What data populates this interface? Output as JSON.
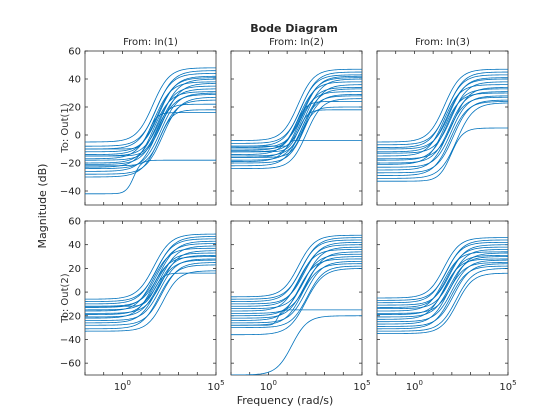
{
  "chart_data": {
    "type": "line",
    "title": "Bode Diagram",
    "xlabel": "Frequency  (rad/s)",
    "ylabel": "Magnitude (dB)",
    "x_scale": "log",
    "xlim": [
      0.01,
      100000
    ],
    "x_tick_labels": [
      {
        "value": 1,
        "base": "10",
        "exp": "0"
      },
      {
        "value": 100000,
        "base": "10",
        "exp": "5"
      }
    ],
    "column_titles": [
      "From: In(1)",
      "From: In(2)",
      "From: In(3)"
    ],
    "row_labels": [
      "To: Out(1)",
      "To: Out(2)"
    ],
    "line_color": "#0072bd",
    "grid": false,
    "rows": [
      {
        "ylim": [
          -50,
          60
        ],
        "yticks": [
          60,
          40,
          20,
          0,
          -20,
          -40
        ]
      },
      {
        "ylim": [
          -70,
          60
        ],
        "yticks": [
          60,
          40,
          20,
          0,
          -20,
          -40,
          -60
        ]
      }
    ],
    "series_note_shape": "each curve: [low-frequency dB, corner rad/s, high-frequency dB]",
    "panels": [
      {
        "row": 0,
        "col": 0,
        "curves": [
          [
            -5,
            2,
            48
          ],
          [
            -8,
            3,
            46
          ],
          [
            -10,
            2.5,
            44
          ],
          [
            -12,
            4,
            42
          ],
          [
            -14,
            3,
            41
          ],
          [
            -15,
            5,
            40
          ],
          [
            -17,
            2,
            38
          ],
          [
            -18,
            6,
            37
          ],
          [
            -20,
            3,
            35
          ],
          [
            -21,
            4,
            33
          ],
          [
            -23,
            2,
            31
          ],
          [
            -24,
            5,
            30
          ],
          [
            -26,
            3,
            29
          ],
          [
            -28,
            6,
            27
          ],
          [
            -30,
            4,
            25
          ],
          [
            -15,
            8,
            22
          ],
          [
            -22,
            10,
            18
          ],
          [
            -10,
            6,
            16
          ],
          [
            -42,
            1,
            -18
          ]
        ]
      },
      {
        "row": 0,
        "col": 1,
        "curves": [
          [
            -4,
            2,
            47
          ],
          [
            -6,
            3,
            45
          ],
          [
            -8,
            2.5,
            43
          ],
          [
            -9,
            4,
            42
          ],
          [
            -11,
            3,
            41
          ],
          [
            -12,
            5,
            40
          ],
          [
            -14,
            2,
            38
          ],
          [
            -15,
            6,
            36
          ],
          [
            -16,
            3,
            34
          ],
          [
            -18,
            4,
            33
          ],
          [
            -19,
            2,
            31
          ],
          [
            -20,
            5,
            29
          ],
          [
            -22,
            3,
            28
          ],
          [
            -24,
            6,
            26
          ],
          [
            -10,
            4,
            24
          ],
          [
            -16,
            8,
            20
          ],
          [
            -12,
            7,
            18
          ],
          [
            -8,
            10,
            -4
          ]
        ]
      },
      {
        "row": 0,
        "col": 2,
        "curves": [
          [
            -5,
            2,
            47
          ],
          [
            -7,
            3,
            45
          ],
          [
            -9,
            2.5,
            43
          ],
          [
            -10,
            4,
            41
          ],
          [
            -12,
            3,
            40
          ],
          [
            -13,
            5,
            38
          ],
          [
            -15,
            2,
            36
          ],
          [
            -17,
            6,
            34
          ],
          [
            -18,
            3,
            33
          ],
          [
            -20,
            4,
            31
          ],
          [
            -21,
            2,
            30
          ],
          [
            -23,
            5,
            28
          ],
          [
            -25,
            3,
            27
          ],
          [
            -27,
            6,
            25
          ],
          [
            -29,
            4,
            24
          ],
          [
            -31,
            8,
            23
          ],
          [
            -33,
            10,
            5
          ]
        ]
      },
      {
        "row": 1,
        "col": 0,
        "curves": [
          [
            -6,
            2,
            49
          ],
          [
            -8,
            3,
            47
          ],
          [
            -10,
            2.5,
            45
          ],
          [
            -12,
            4,
            43
          ],
          [
            -13,
            3,
            41
          ],
          [
            -15,
            5,
            39
          ],
          [
            -16,
            2,
            37
          ],
          [
            -18,
            6,
            35
          ],
          [
            -19,
            3,
            33
          ],
          [
            -21,
            4,
            31
          ],
          [
            -22,
            2,
            30
          ],
          [
            -24,
            5,
            28
          ],
          [
            -26,
            3,
            27
          ],
          [
            -28,
            6,
            25
          ],
          [
            -31,
            4,
            23
          ],
          [
            -33,
            8,
            18
          ],
          [
            -12,
            10,
            16
          ]
        ]
      },
      {
        "row": 1,
        "col": 1,
        "curves": [
          [
            -4,
            2,
            48
          ],
          [
            -6,
            3,
            46
          ],
          [
            -8,
            2.5,
            44
          ],
          [
            -10,
            4,
            42
          ],
          [
            -12,
            3,
            40
          ],
          [
            -14,
            5,
            38
          ],
          [
            -16,
            2,
            36
          ],
          [
            -18,
            6,
            34
          ],
          [
            -20,
            3,
            32
          ],
          [
            -22,
            4,
            30
          ],
          [
            -24,
            2,
            28
          ],
          [
            -26,
            5,
            26
          ],
          [
            -28,
            3,
            24
          ],
          [
            -30,
            6,
            22
          ],
          [
            -36,
            4,
            20
          ],
          [
            -70,
            1,
            -20
          ],
          [
            -28,
            1.5,
            -15
          ]
        ]
      },
      {
        "row": 1,
        "col": 2,
        "curves": [
          [
            -5,
            2,
            46
          ],
          [
            -7,
            3,
            44
          ],
          [
            -9,
            2.5,
            42
          ],
          [
            -11,
            4,
            40
          ],
          [
            -13,
            3,
            38
          ],
          [
            -14,
            5,
            36
          ],
          [
            -16,
            2,
            34
          ],
          [
            -18,
            6,
            33
          ],
          [
            -19,
            3,
            31
          ],
          [
            -21,
            4,
            30
          ],
          [
            -23,
            2,
            28
          ],
          [
            -25,
            5,
            27
          ],
          [
            -27,
            3,
            25
          ],
          [
            -29,
            6,
            24
          ],
          [
            -31,
            4,
            22
          ],
          [
            -33,
            8,
            20
          ],
          [
            -35,
            10,
            16
          ]
        ]
      }
    ]
  }
}
